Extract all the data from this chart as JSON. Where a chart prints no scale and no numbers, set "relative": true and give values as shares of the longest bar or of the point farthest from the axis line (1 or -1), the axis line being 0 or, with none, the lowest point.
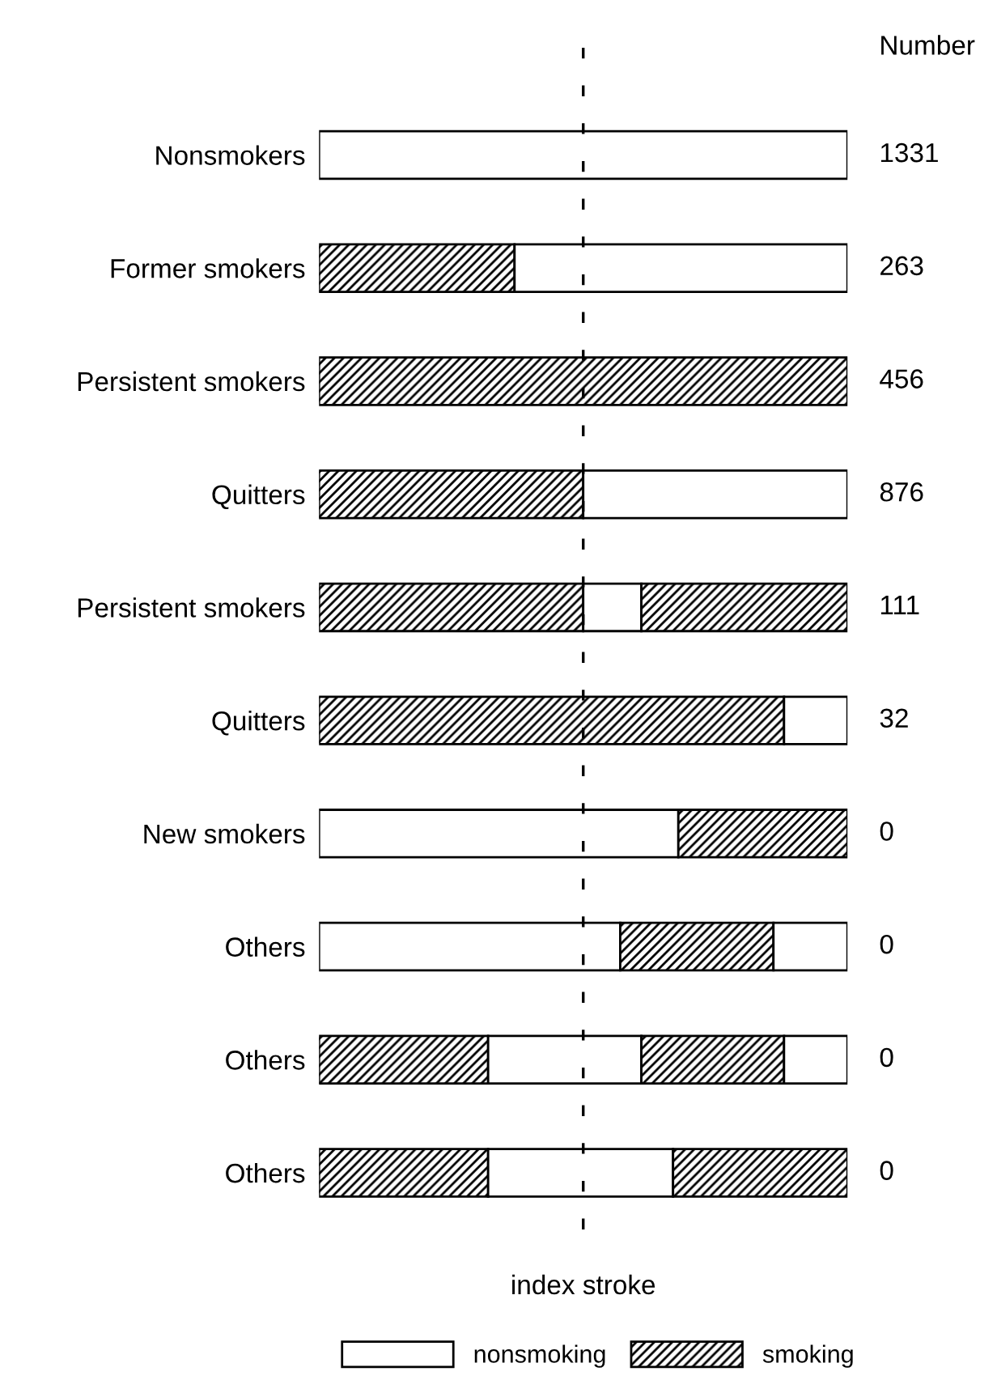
{
  "chart_data": {
    "type": "bar",
    "orientation": "horizontal",
    "relative": true,
    "stacked": true,
    "categories": [
      "Nonsmokers",
      "Former smokers",
      "Persistent smokers",
      "Quitters",
      "Persistent smokers",
      "Quitters",
      "New smokers",
      "Others",
      "Others",
      "Others"
    ],
    "series": [
      {
        "name": "nonsmoking",
        "color": "#ffffff",
        "values": [
          1,
          null,
          null,
          null,
          null,
          null,
          0.68,
          0.57,
          null,
          null
        ]
      },
      {
        "name": "smoking",
        "color": "#000000",
        "values": [
          null,
          0.37,
          1,
          0.5,
          0.5,
          0.88,
          0.32,
          0.29,
          0.32,
          0.32
        ]
      },
      {
        "color": "#ffffff",
        "values": [
          null,
          0.63,
          null,
          0.5,
          0.11,
          0.12,
          null,
          0.14,
          0.29,
          0.35
        ]
      },
      {
        "color": "#000000",
        "values": [
          null,
          null,
          null,
          null,
          0.39,
          null,
          null,
          null,
          0.27,
          0.33
        ]
      },
      {
        "color": "#ffffff",
        "values": [
          null,
          null,
          null,
          null,
          null,
          null,
          null,
          null,
          0.12,
          null
        ]
      }
    ],
    "ref_lines": [
      {
        "axis": "x",
        "value": 0.5,
        "label": "index stroke",
        "line_style": "dashed"
      }
    ],
    "annotations": [
      "Number",
      "1331",
      "263",
      "456",
      "876",
      "111",
      "32",
      "0",
      "0",
      "0",
      "0"
    ],
    "legend": "bottom",
    "grid": false
  }
}
